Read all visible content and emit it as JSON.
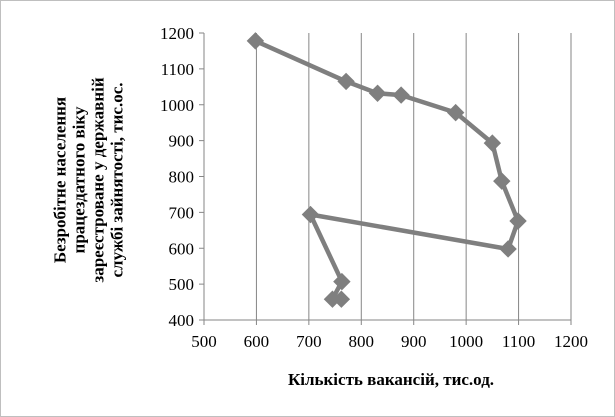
{
  "chart_data": {
    "type": "scatter",
    "xlabel": "Кількість вакансій, тис.од.",
    "ylabel_lines": [
      "Безробітне населення",
      "працездатного віку",
      "зареєстроване у державній",
      "службі зайнятості, тис.ос."
    ],
    "xlim": [
      500,
      1200
    ],
    "ylim": [
      400,
      1200
    ],
    "xticks": [
      500,
      600,
      700,
      800,
      900,
      1000,
      1100,
      1200
    ],
    "yticks": [
      400,
      500,
      600,
      700,
      800,
      900,
      1000,
      1100,
      1200
    ],
    "grid": "vertical",
    "legend": "none",
    "series": [
      {
        "color": "#7f7f7f",
        "marker": "diamond",
        "x": [
          598,
          771,
          831,
          876,
          980,
          1050,
          1068,
          1099,
          1080,
          703,
          763,
          745,
          762
        ],
        "y": [
          1178,
          1065,
          1032,
          1027,
          978,
          893,
          787,
          676,
          598,
          694,
          507,
          458,
          458
        ]
      }
    ]
  }
}
